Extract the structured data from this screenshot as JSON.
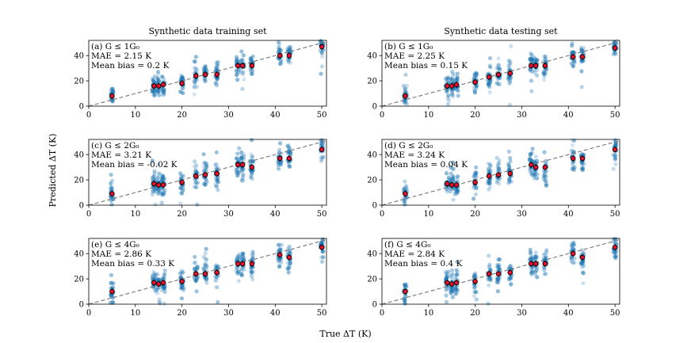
{
  "figure": {
    "col_titles": [
      "Synthetic data training set",
      "Synthetic data testing set"
    ],
    "ylabel": "Predicted ΔT (K)",
    "xlabel": "True ΔT (K)"
  },
  "colors": {
    "scatter": "#1f77b4",
    "mean_marker": "#e8112d",
    "marker_edge": "#000000",
    "diagonal": "#7f7f7f"
  },
  "chart_data": [
    {
      "type": "scatter",
      "panel": "a",
      "label": "(a) G ≤ 1G₀",
      "mae": "MAE = 2.15 K",
      "bias": "Mean bias = 0.2 K",
      "x": [
        5,
        14,
        15,
        16,
        20,
        23,
        25,
        27.5,
        32,
        33,
        35,
        41,
        43,
        50
      ],
      "means": [
        8,
        16,
        16,
        17,
        18,
        24,
        25,
        25,
        32,
        32,
        32,
        40,
        40,
        47
      ],
      "xlim": [
        0,
        51
      ],
      "ylim": [
        0,
        52
      ],
      "xticks": [
        0,
        10,
        20,
        30,
        40,
        50
      ],
      "yticks": [
        0,
        20,
        40
      ]
    },
    {
      "type": "scatter",
      "panel": "b",
      "label": "(b) G ≤ 1G₀",
      "mae": "MAE = 2.25 K",
      "bias": "Mean bias = 0.15 K",
      "x": [
        5,
        14,
        15,
        16,
        20,
        23,
        25,
        27.5,
        32,
        33,
        35,
        41,
        43,
        50
      ],
      "means": [
        8,
        16,
        16,
        17,
        19,
        23,
        25,
        26,
        32,
        32,
        32,
        39,
        39,
        46
      ],
      "xlim": [
        0,
        51
      ],
      "ylim": [
        0,
        52
      ],
      "xticks": [
        0,
        10,
        20,
        30,
        40,
        50
      ],
      "yticks": [
        0,
        20,
        40
      ]
    },
    {
      "type": "scatter",
      "panel": "c",
      "label": "(c) G ≤ 2G₀",
      "mae": "MAE = 3.21 K",
      "bias": "Mean bias = -0.02 K",
      "x": [
        5,
        14,
        15,
        16,
        20,
        23,
        25,
        27.5,
        32,
        33,
        35,
        41,
        43,
        50
      ],
      "means": [
        9,
        17,
        16,
        16,
        18,
        23,
        24,
        25,
        32,
        32,
        30,
        37,
        37,
        44
      ],
      "xlim": [
        0,
        51
      ],
      "ylim": [
        0,
        52
      ],
      "xticks": [
        0,
        10,
        20,
        30,
        40,
        50
      ],
      "yticks": [
        0,
        20,
        40
      ]
    },
    {
      "type": "scatter",
      "panel": "d",
      "label": "(d) G ≤ 2G₀",
      "mae": "MAE = 3.24 K",
      "bias": "Mean bias = 0.04 K",
      "x": [
        5,
        14,
        15,
        16,
        20,
        23,
        25,
        27.5,
        32,
        33,
        35,
        41,
        43,
        50
      ],
      "means": [
        9,
        17,
        16,
        16,
        18,
        23,
        24,
        25,
        32,
        30,
        30,
        37,
        37,
        44
      ],
      "xlim": [
        0,
        51
      ],
      "ylim": [
        0,
        52
      ],
      "xticks": [
        0,
        10,
        20,
        30,
        40,
        50
      ],
      "yticks": [
        0,
        20,
        40
      ]
    },
    {
      "type": "scatter",
      "panel": "e",
      "label": "(e) G ≤ 4G₀",
      "mae": "MAE = 2.86 K",
      "bias": "Mean bias = 0.33 K",
      "x": [
        5,
        14,
        15,
        16,
        20,
        23,
        25,
        27.5,
        32,
        33,
        35,
        41,
        43,
        50
      ],
      "means": [
        10,
        17,
        16,
        17,
        18,
        24,
        24,
        25,
        32,
        32,
        32,
        39,
        37,
        45
      ],
      "xlim": [
        0,
        51
      ],
      "ylim": [
        0,
        52
      ],
      "xticks": [
        0,
        10,
        20,
        30,
        40,
        50
      ],
      "yticks": [
        0,
        20,
        40
      ]
    },
    {
      "type": "scatter",
      "panel": "f",
      "label": "(f) G ≤ 4G₀",
      "mae": "MAE = 2.84 K",
      "bias": "Mean bias = 0.4 K",
      "x": [
        5,
        14,
        15,
        16,
        20,
        23,
        25,
        27.5,
        32,
        33,
        35,
        41,
        43,
        50
      ],
      "means": [
        10,
        17,
        16,
        17,
        18,
        24,
        24,
        25,
        32,
        32,
        32,
        40,
        37,
        45
      ],
      "xlim": [
        0,
        51
      ],
      "ylim": [
        0,
        52
      ],
      "xticks": [
        0,
        10,
        20,
        30,
        40,
        50
      ],
      "yticks": [
        0,
        20,
        40
      ]
    }
  ]
}
